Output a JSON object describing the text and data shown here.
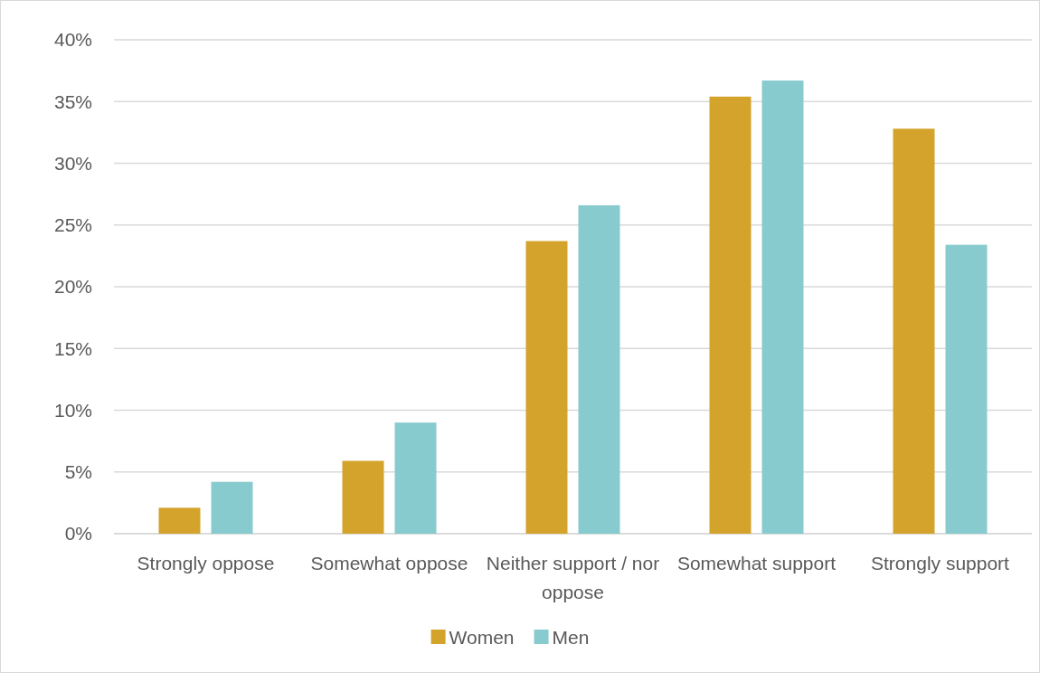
{
  "chart_data": {
    "type": "bar",
    "categories": [
      "Strongly oppose",
      "Somewhat oppose",
      "Neither support / nor oppose",
      "Somewhat support",
      "Strongly support"
    ],
    "series": [
      {
        "name": "Women",
        "color": "#d4a32c",
        "values": [
          2.1,
          5.9,
          23.7,
          35.4,
          32.8
        ]
      },
      {
        "name": "Men",
        "color": "#88cbcf",
        "values": [
          4.2,
          9.0,
          26.6,
          36.7,
          23.4
        ]
      }
    ],
    "ylim": [
      0,
      40
    ],
    "yticks": [
      {
        "value": 0,
        "label": "0%"
      },
      {
        "value": 5,
        "label": "5%"
      },
      {
        "value": 10,
        "label": "10%"
      },
      {
        "value": 15,
        "label": "15%"
      },
      {
        "value": 20,
        "label": "20%"
      },
      {
        "value": 25,
        "label": "25%"
      },
      {
        "value": 30,
        "label": "30%"
      },
      {
        "value": 35,
        "label": "35%"
      },
      {
        "value": 40,
        "label": "40%"
      }
    ],
    "grid": "y",
    "legend": "bottom"
  }
}
